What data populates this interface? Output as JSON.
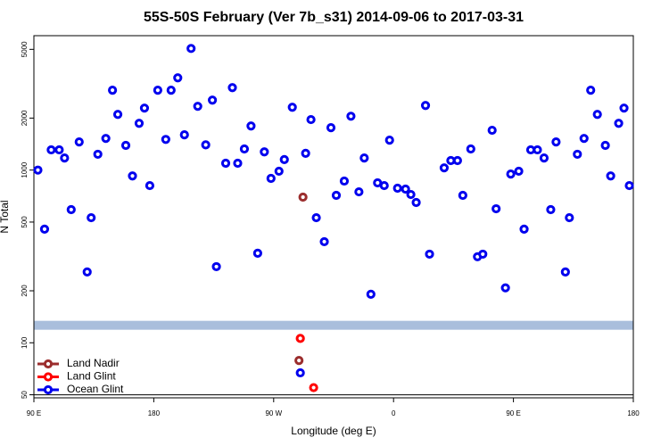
{
  "chart_data": {
    "type": "scatter",
    "title": "55S-50S February (Ver 7b_s31)   2014-09-06 to 2017-03-31",
    "xlabel": "Longitude (deg E)",
    "ylabel": "N Total",
    "xlim": [
      90,
      540
    ],
    "xticks": [
      {
        "value": 90,
        "label": "90 E"
      },
      180,
      {
        "value": 270,
        "label": "90 W"
      },
      {
        "value": 360,
        "label": "0"
      },
      {
        "value": 450,
        "label": "90 E"
      },
      {
        "value": 540,
        "label": "180"
      }
    ],
    "ylim": [
      48,
      6000
    ],
    "log_y": true,
    "yticks": [
      50,
      100,
      200,
      500,
      1000,
      2000,
      5000
    ],
    "band": {
      "ylim": [
        119,
        134
      ],
      "color": "#a9bedc"
    },
    "hline": 50,
    "legend": "lower left",
    "series": [
      {
        "name": "Land Nadir",
        "color": "#9b2d2d",
        "x": [
          292,
          289
        ],
        "values": [
          697,
          79
        ]
      },
      {
        "name": "Land Glint",
        "color": "#ff0000",
        "x": [
          290,
          300
        ],
        "values": [
          106,
          55
        ]
      },
      {
        "name": "Ocean Glint",
        "color": "#0000ee",
        "x": [
          93,
          98,
          103,
          109,
          113,
          118,
          124,
          130,
          133,
          138,
          144,
          149,
          153,
          159,
          164,
          169,
          173,
          177,
          183,
          189,
          193,
          198,
          203,
          208,
          213,
          219,
          224,
          227,
          234,
          239,
          243,
          248,
          253,
          258,
          263,
          268,
          274,
          278,
          284,
          294,
          298,
          302,
          308,
          313,
          317,
          323,
          328,
          334,
          338,
          343,
          348,
          353,
          357,
          363,
          369,
          373,
          377,
          384,
          387,
          398,
          403,
          408,
          412,
          418,
          423,
          427,
          434,
          437,
          444,
          448,
          454,
          458,
          463,
          468,
          473,
          478,
          482,
          489,
          492,
          498,
          503,
          508,
          513,
          519,
          523,
          529,
          533,
          537,
          290
        ],
        "values": [
          1000,
          455,
          1310,
          1310,
          1175,
          590,
          1455,
          257,
          530,
          1235,
          1525,
          2900,
          2100,
          1390,
          925,
          1865,
          2285,
          813,
          2900,
          1505,
          2900,
          3420,
          1600,
          5060,
          2340,
          1400,
          2540,
          276,
          1095,
          3000,
          1095,
          1325,
          1800,
          330,
          1275,
          895,
          985,
          1150,
          2310,
          1250,
          1960,
          530,
          385,
          1760,
          714,
          864,
          2050,
          748,
          1175,
          191,
          843,
          813,
          1490,
          785,
          776,
          722,
          649,
          2365,
          326,
          1030,
          1135,
          1135,
          714,
          1325,
          315,
          326,
          1700,
          597,
          208,
          948,
          985,
          455,
          1310,
          1310,
          1175,
          590,
          1455,
          257,
          530,
          1235,
          1525,
          2900,
          2100,
          1390,
          925,
          1865,
          2285,
          813,
          67
        ]
      }
    ]
  }
}
